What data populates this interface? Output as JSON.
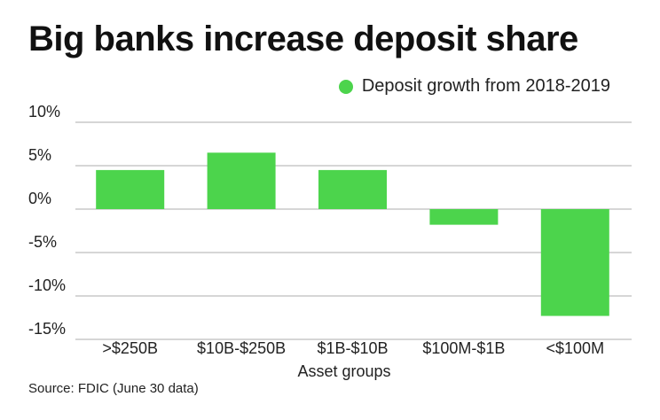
{
  "chart_data": {
    "type": "bar",
    "title": "Big banks increase deposit share",
    "series": [
      {
        "name": "Deposit growth from 2018-2019",
        "values": [
          4.5,
          6.5,
          4.5,
          -1.8,
          -12.3
        ]
      }
    ],
    "categories": [
      ">$250B",
      "$10B-$250B",
      "$1B-$10B",
      "$100M-$1B",
      "<$100M"
    ],
    "xlabel": "Asset groups",
    "ylabel": "",
    "ylim": [
      -15,
      10
    ],
    "yticks": [
      "10%",
      "5%",
      "0%",
      "-5%",
      "-10%",
      "-15%"
    ],
    "ytick_values": [
      10,
      5,
      0,
      -5,
      -10,
      -15
    ],
    "grid": true,
    "legend_position": "top-right",
    "bar_color": "#4cd44c",
    "grid_color": "#c8c8c8",
    "source": "Source: FDIC (June 30 data)"
  }
}
